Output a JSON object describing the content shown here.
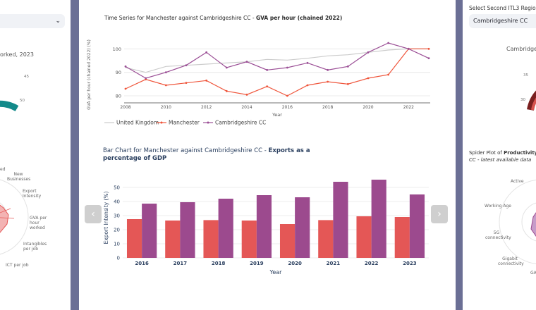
{
  "left": {
    "gauge_title": "orked, 2023",
    "gauge_ticks": [
      "45",
      "50"
    ],
    "spider_labels": [
      "ed",
      "New Businesses",
      "Export Intensity",
      "GVA per hour worked",
      "Intangibles per job",
      "ICT per job"
    ]
  },
  "center": {
    "line_chart": {
      "title_prefix": "Time Series for Manchester against Cambridgeshire CC - ",
      "title_bold": "GVA per hour (chained 2022)"
    },
    "bar_chart": {
      "title_prefix": "Bar Chart for Manchester against Cambridgeshire CC - ",
      "title_bold": "Exports as a percentage of GDP"
    },
    "prev_icon": "‹",
    "next_icon": "›"
  },
  "right": {
    "select_label": "Select Second ITL3 Region:",
    "select_value": "Cambridgeshire CC",
    "gauge_title": "Cambridgeshire",
    "gauge_ticks": [
      "35",
      "30"
    ],
    "spider_title_prefix": "Spider Plot of ",
    "spider_title_bold": "Productivity Indi",
    "spider_subtitle": "CC - latest available data",
    "spider_labels": [
      "Active",
      "Working Age",
      "5G connectivity",
      "Gigabit connectivity",
      "GA"
    ]
  },
  "colors": {
    "uk": "#cccccc",
    "manchester": "#ef553b",
    "manchester_bar": "#e45756",
    "cambridge": "#9b4f96",
    "cambridge_bar": "#9c4a8e",
    "gauge_teal": "#138a8a",
    "gauge_red": "#c0392b"
  },
  "chart_data": [
    {
      "type": "line",
      "title": "Time Series for Manchester against Cambridgeshire CC - GVA per hour (chained 2022)",
      "xlabel": "Year",
      "ylabel": "GVA per hour (chained 2022) (%)",
      "x": [
        2008,
        2009,
        2010,
        2011,
        2012,
        2013,
        2014,
        2015,
        2016,
        2017,
        2018,
        2019,
        2020,
        2021,
        2022,
        2023
      ],
      "xticks": [
        2008,
        2010,
        2012,
        2014,
        2016,
        2018,
        2020,
        2022
      ],
      "yticks": [
        80,
        90,
        100
      ],
      "ylim": [
        77,
        104
      ],
      "legend": "bottom",
      "series": [
        {
          "name": "United Kingdom",
          "values": [
            92,
            90,
            92.5,
            93,
            93.5,
            94,
            94.5,
            95.5,
            95.2,
            96,
            97,
            97.5,
            98.5,
            99.5,
            100,
            100
          ]
        },
        {
          "name": "Manchester",
          "values": [
            83,
            87,
            84.5,
            85.5,
            86.5,
            82,
            80.5,
            84,
            80,
            84.5,
            86,
            85,
            87.5,
            89,
            100,
            100
          ]
        },
        {
          "name": "Cambridgeshire CC",
          "values": [
            92.5,
            87.5,
            90,
            93,
            98.5,
            92,
            94.5,
            91,
            92,
            94,
            91,
            92.5,
            98.5,
            102.5,
            100,
            96
          ]
        }
      ]
    },
    {
      "type": "bar",
      "title": "Bar Chart for Manchester against Cambridgeshire CC - Exports as a percentage of GDP",
      "xlabel": "Year",
      "ylabel": "Export Intensity (%)",
      "categories": [
        "2016",
        "2017",
        "2018",
        "2019",
        "2020",
        "2021",
        "2022",
        "2023"
      ],
      "yticks": [
        0,
        10,
        20,
        30,
        40,
        50
      ],
      "ylim": [
        0,
        57
      ],
      "legend": "none",
      "series": [
        {
          "name": "Manchester",
          "values": [
            27.5,
            26.5,
            26.8,
            26.5,
            24,
            26.8,
            29.5,
            29
          ]
        },
        {
          "name": "Cambridgeshire CC",
          "values": [
            38.5,
            39.5,
            42,
            44.5,
            43,
            54,
            55.5,
            45
          ]
        }
      ]
    }
  ]
}
